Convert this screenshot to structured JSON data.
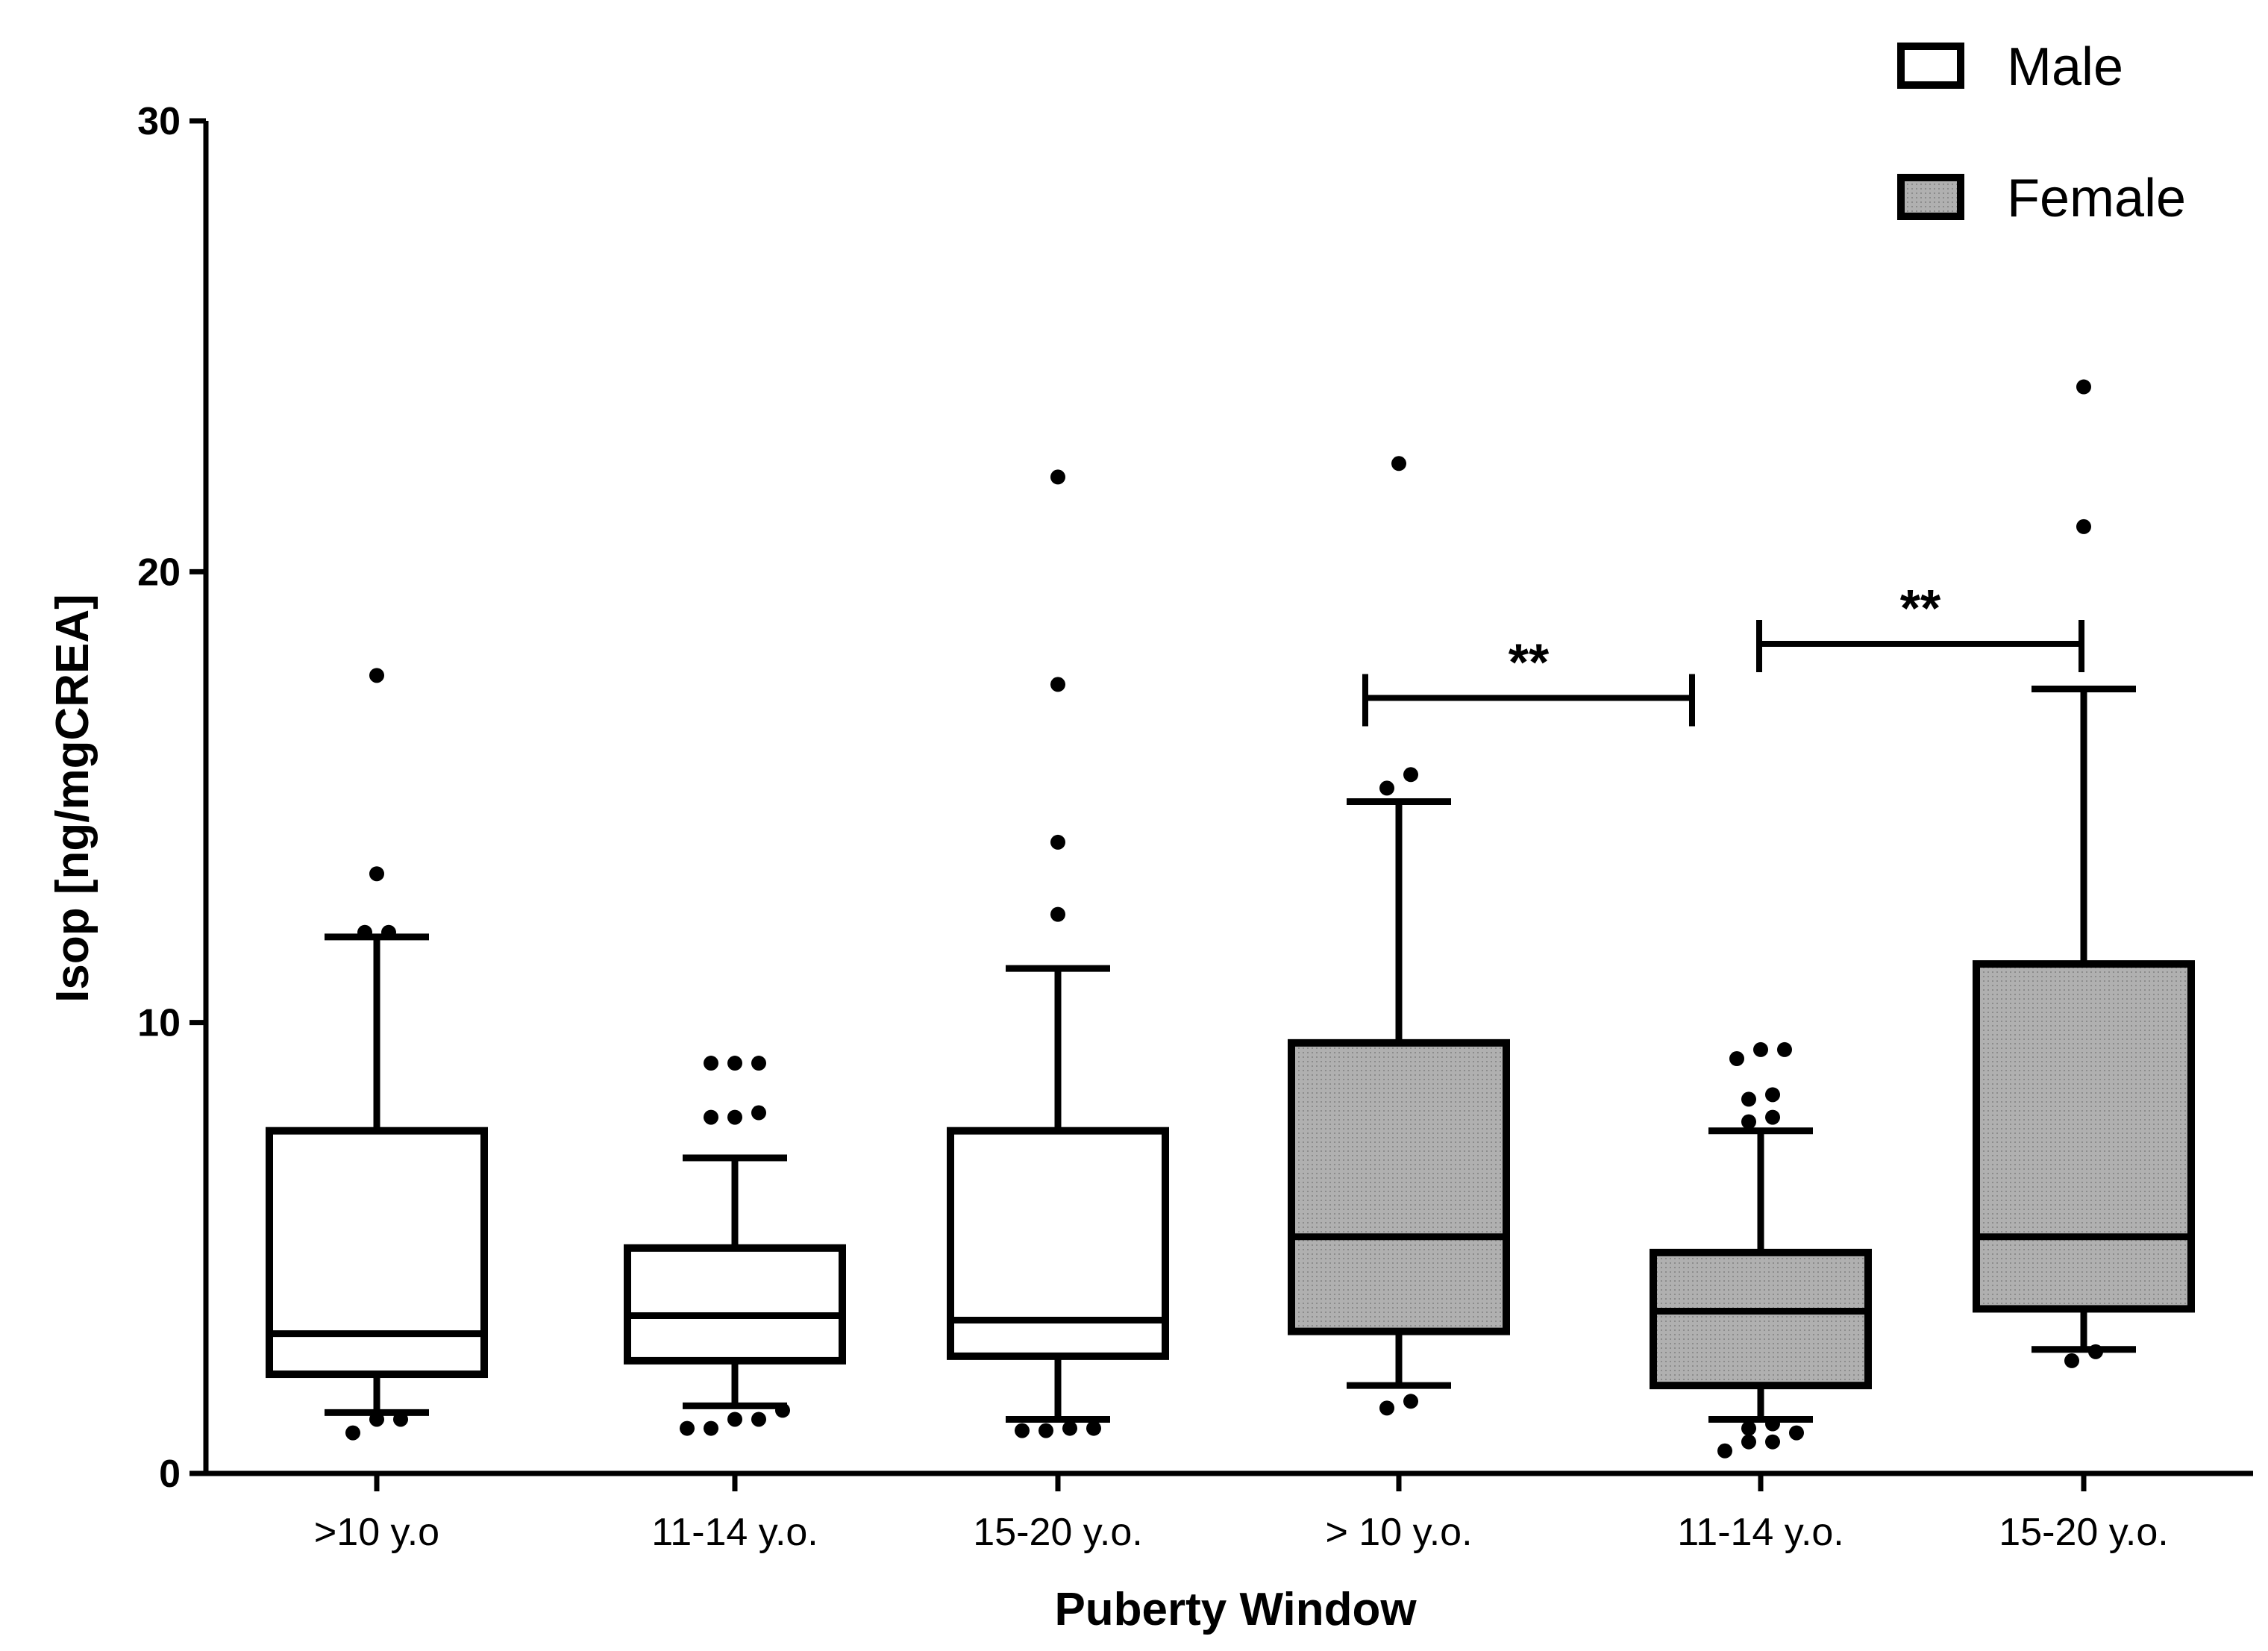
{
  "chart_data": {
    "type": "box",
    "title": "",
    "xlabel": "Puberty Window",
    "ylabel": "Isop [ng/mgCREA]",
    "ylim": [
      0,
      30
    ],
    "yticks": [
      0,
      10,
      20,
      30
    ],
    "categories": [
      ">10 y.o",
      "11-14 y.o.",
      "15-20 y.o.",
      "> 10 y.o.",
      "11-14 y.o.",
      "15-20 y.o."
    ],
    "legend": {
      "position": "top-right",
      "entries": [
        {
          "label": "Male",
          "fill": "#ffffff"
        },
        {
          "label": "Female",
          "fill": "#a6a6a6"
        }
      ]
    },
    "series": [
      {
        "name": "Male",
        "boxes": [
          {
            "category": ">10 y.o",
            "whisker_low": 1.35,
            "q1": 2.2,
            "median": 3.1,
            "q3": 7.6,
            "whisker_high": 11.9,
            "outliers": [
              0.9,
              1.2,
              1.2,
              12.0,
              12.0,
              13.3,
              17.7
            ]
          },
          {
            "category": "11-14 y.o.",
            "whisker_low": 1.5,
            "q1": 2.5,
            "median": 3.5,
            "q3": 5.0,
            "whisker_high": 7.0,
            "outliers": [
              1.0,
              1.0,
              1.2,
              1.2,
              1.4,
              7.9,
              7.9,
              8.0,
              9.1,
              9.1,
              9.1
            ]
          },
          {
            "category": "15-20 y.o.",
            "whisker_low": 1.2,
            "q1": 2.6,
            "median": 3.4,
            "q3": 7.6,
            "whisker_high": 11.2,
            "outliers": [
              0.95,
              0.95,
              1.0,
              1.0,
              12.4,
              14.0,
              17.5,
              22.1
            ]
          }
        ]
      },
      {
        "name": "Female",
        "boxes": [
          {
            "category": "> 10 y.o.",
            "whisker_low": 1.95,
            "q1": 3.15,
            "median": 5.25,
            "q3": 9.55,
            "whisker_high": 14.9,
            "outliers": [
              1.45,
              1.6,
              15.2,
              15.5,
              22.4
            ]
          },
          {
            "category": "11-14 y.o.",
            "whisker_low": 1.2,
            "q1": 1.95,
            "median": 3.6,
            "q3": 4.9,
            "whisker_high": 7.6,
            "outliers": [
              0.5,
              0.7,
              0.7,
              0.9,
              1.0,
              1.1,
              7.8,
              7.9,
              8.3,
              8.4,
              9.2,
              9.4,
              9.4
            ]
          },
          {
            "category": "15-20 y.o.",
            "whisker_low": 2.75,
            "q1": 3.65,
            "median": 5.25,
            "q3": 11.3,
            "whisker_high": 17.4,
            "outliers": [
              2.5,
              2.7,
              21.0,
              24.1
            ]
          }
        ]
      }
    ],
    "significance": [
      {
        "from": "> 10 y.o.",
        "to": "11-14 y.o.",
        "value": 17.2,
        "label": "**"
      },
      {
        "from": "11-14 y.o.",
        "to": "15-20 y.o.",
        "value": 18.4,
        "label": "**"
      }
    ]
  }
}
